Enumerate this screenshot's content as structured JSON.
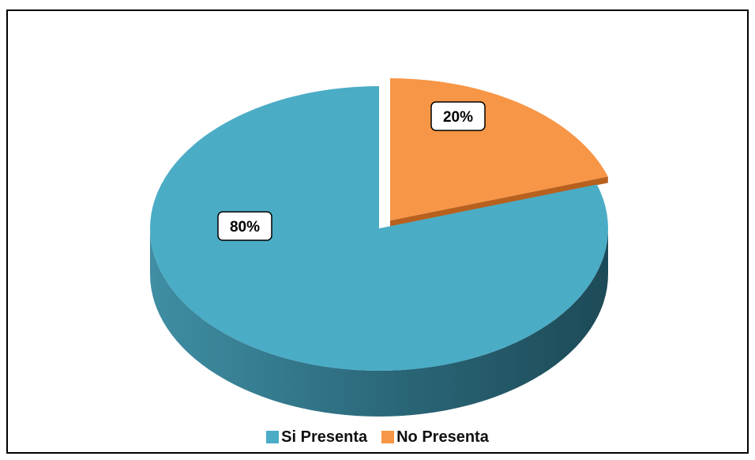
{
  "chart_data": {
    "type": "pie",
    "title": "",
    "categories": [
      "Si Presenta",
      "No Presenta"
    ],
    "values": [
      80,
      20
    ],
    "data_labels": [
      "80%",
      "20%"
    ],
    "colors": [
      "#4bacc6",
      "#f79646"
    ],
    "legend_position": "bottom",
    "style": "3d-exploded"
  },
  "legend": {
    "items": [
      {
        "label": "Si Presenta",
        "color": "#4bacc6"
      },
      {
        "label": "No Presenta",
        "color": "#f79646"
      }
    ]
  }
}
